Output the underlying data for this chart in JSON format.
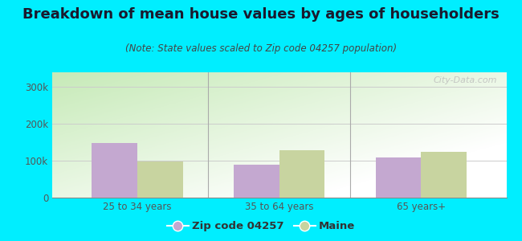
{
  "title": "Breakdown of mean house values by ages of householders",
  "subtitle": "(Note: State values scaled to Zip code 04257 population)",
  "categories": [
    "25 to 34 years",
    "35 to 64 years",
    "65 years+"
  ],
  "zip_values": [
    148000,
    90000,
    110000
  ],
  "state_values": [
    98000,
    128000,
    125000
  ],
  "zip_color": "#c4a8d0",
  "state_color": "#c8d4a0",
  "ylim": [
    0,
    340000
  ],
  "yticks": [
    0,
    100000,
    200000,
    300000
  ],
  "ytick_labels": [
    "0",
    "100k",
    "200k",
    "300k"
  ],
  "outer_bg": "#00eeff",
  "bar_width": 0.32,
  "legend_labels": [
    "Zip code 04257",
    "Maine"
  ],
  "watermark": "City-Data.com",
  "title_fontsize": 13,
  "subtitle_fontsize": 8.5,
  "tick_fontsize": 8.5,
  "legend_fontsize": 9.5,
  "title_color": "#1a1a2e",
  "subtitle_color": "#444444",
  "tick_color": "#555555"
}
